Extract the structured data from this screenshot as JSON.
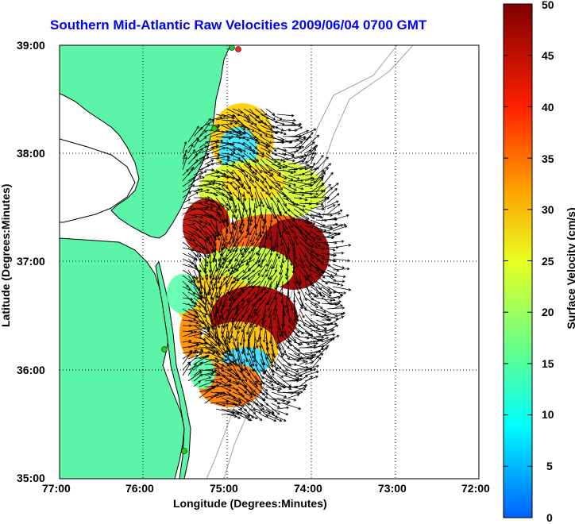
{
  "title": "Southern Mid-Atlantic Raw Velocities 2009/06/04 0700 GMT",
  "axes": {
    "xlabel": "Longitude (Degrees:Minutes)",
    "ylabel": "Latitude (Degrees:Minutes)",
    "x_ticks": [
      "77:00",
      "76:00",
      "75:00",
      "74:00",
      "73:00",
      "72:00"
    ],
    "y_ticks": [
      "39:00",
      "38:00",
      "37:00",
      "36:00",
      "35:00"
    ],
    "xlim": [
      -77,
      -72
    ],
    "ylim": [
      35,
      39
    ],
    "grid": "dotted"
  },
  "colorbar": {
    "label": "Surface Velocity (cm/s)",
    "ticks": [
      "50",
      "45",
      "40",
      "35",
      "30",
      "25",
      "20",
      "15",
      "10",
      "5",
      "0"
    ],
    "range": [
      0,
      50
    ],
    "colors": [
      "#0000ff",
      "#00ffff",
      "#80ff80",
      "#ffff00",
      "#ff8000",
      "#ff0000",
      "#800000"
    ]
  },
  "colors": {
    "land": "#5cf5a8",
    "coast": "#000000",
    "bathymetry": "#a0a0a0",
    "title": "#0000ff",
    "stations": "#22cc22",
    "station_offline": "#ff2020"
  }
}
